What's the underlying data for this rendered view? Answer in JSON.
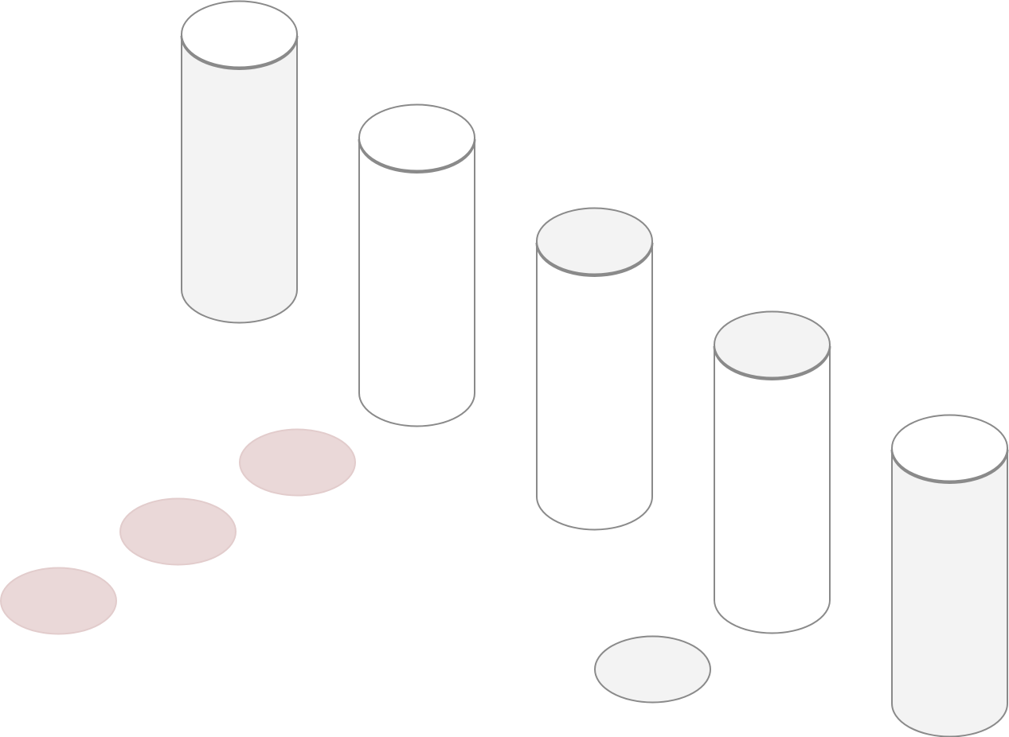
{
  "colors": {
    "background": "#ffffff",
    "stroke": "#8a8a8a",
    "fill_white": "#ffffff",
    "fill_light_gray": "#f3f3f3",
    "disk_pink_fill": "#ead8d8",
    "disk_pink_stroke": "#e2cccc",
    "disk_gray_fill": "#f3f3f3"
  },
  "cylinders": [
    {
      "name": "cylinder-1",
      "top_fill": "fill_white",
      "body_fill": "fill_light_gray"
    },
    {
      "name": "cylinder-2",
      "top_fill": "fill_white",
      "body_fill": "fill_white"
    },
    {
      "name": "cylinder-3",
      "top_fill": "fill_light_gray",
      "body_fill": "fill_white"
    },
    {
      "name": "cylinder-4",
      "top_fill": "fill_light_gray",
      "body_fill": "fill_white"
    },
    {
      "name": "cylinder-5",
      "top_fill": "fill_white",
      "body_fill": "fill_light_gray"
    }
  ],
  "disks": [
    {
      "name": "disk-pink-1",
      "style": "pink"
    },
    {
      "name": "disk-pink-2",
      "style": "pink"
    },
    {
      "name": "disk-pink-3",
      "style": "pink"
    },
    {
      "name": "disk-gray-1",
      "style": "gray"
    }
  ]
}
